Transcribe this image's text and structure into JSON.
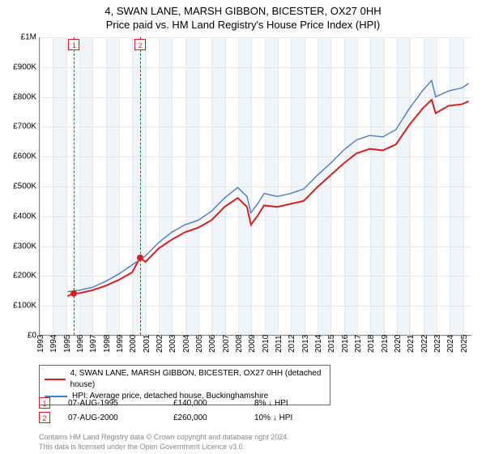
{
  "title": {
    "line1": "4, SWAN LANE, MARSH GIBBON, BICESTER, OX27 0HH",
    "line2": "Price paid vs. HM Land Registry's House Price Index (HPI)"
  },
  "chart": {
    "type": "line",
    "background_color": "#ffffff",
    "grid_color": "#e8e8e8",
    "axis_color": "#888888",
    "alt_band_color": "#f0f5fa",
    "label_fontsize": 10,
    "y": {
      "min": 0,
      "max": 1000000,
      "step": 100000,
      "labels": [
        "£0",
        "£100K",
        "£200K",
        "£300K",
        "£400K",
        "£500K",
        "£600K",
        "£700K",
        "£800K",
        "£900K",
        "£1M"
      ]
    },
    "x": {
      "min": 1993,
      "max": 2025.7,
      "labels": [
        "1993",
        "1994",
        "1995",
        "1996",
        "1997",
        "1998",
        "1999",
        "2000",
        "2001",
        "2002",
        "2003",
        "2004",
        "2005",
        "2006",
        "2007",
        "2008",
        "2009",
        "2010",
        "2011",
        "2012",
        "2013",
        "2014",
        "2015",
        "2016",
        "2017",
        "2018",
        "2019",
        "2020",
        "2021",
        "2022",
        "2023",
        "2024",
        "2025"
      ]
    },
    "markers": [
      {
        "id": "1",
        "x": 1995.6
      },
      {
        "id": "2",
        "x": 2000.6
      }
    ],
    "series": [
      {
        "name": "property",
        "label": "4, SWAN LANE, MARSH GIBBON, BICESTER, OX27 0HH (detached house)",
        "color": "#d42020",
        "width": 2,
        "points": [
          [
            1995.1,
            130000
          ],
          [
            1995.6,
            140000
          ],
          [
            1996,
            140000
          ],
          [
            1997,
            150000
          ],
          [
            1998,
            165000
          ],
          [
            1999,
            185000
          ],
          [
            2000,
            210000
          ],
          [
            2000.6,
            260000
          ],
          [
            2001,
            245000
          ],
          [
            2002,
            290000
          ],
          [
            2003,
            320000
          ],
          [
            2004,
            345000
          ],
          [
            2005,
            360000
          ],
          [
            2006,
            385000
          ],
          [
            2007,
            430000
          ],
          [
            2008,
            460000
          ],
          [
            2008.7,
            430000
          ],
          [
            2009,
            370000
          ],
          [
            2009.5,
            400000
          ],
          [
            2010,
            435000
          ],
          [
            2011,
            430000
          ],
          [
            2012,
            440000
          ],
          [
            2013,
            450000
          ],
          [
            2014,
            495000
          ],
          [
            2015,
            535000
          ],
          [
            2016,
            575000
          ],
          [
            2017,
            610000
          ],
          [
            2018,
            625000
          ],
          [
            2019,
            620000
          ],
          [
            2020,
            640000
          ],
          [
            2021,
            705000
          ],
          [
            2022,
            760000
          ],
          [
            2022.7,
            790000
          ],
          [
            2023,
            745000
          ],
          [
            2024,
            770000
          ],
          [
            2025,
            775000
          ],
          [
            2025.5,
            785000
          ]
        ],
        "data_points": [
          {
            "x": 1995.6,
            "y": 140000
          },
          {
            "x": 2000.6,
            "y": 260000
          }
        ]
      },
      {
        "name": "hpi",
        "label": "HPI: Average price, detached house, Buckinghamshire",
        "color": "#4a7bc8",
        "width": 1.4,
        "points": [
          [
            1995.1,
            145000
          ],
          [
            1996,
            150000
          ],
          [
            1997,
            160000
          ],
          [
            1998,
            180000
          ],
          [
            1999,
            205000
          ],
          [
            2000,
            235000
          ],
          [
            2001,
            265000
          ],
          [
            2002,
            310000
          ],
          [
            2003,
            345000
          ],
          [
            2004,
            370000
          ],
          [
            2005,
            385000
          ],
          [
            2006,
            415000
          ],
          [
            2007,
            460000
          ],
          [
            2008,
            495000
          ],
          [
            2008.7,
            465000
          ],
          [
            2009,
            410000
          ],
          [
            2009.5,
            440000
          ],
          [
            2010,
            475000
          ],
          [
            2011,
            465000
          ],
          [
            2012,
            475000
          ],
          [
            2013,
            490000
          ],
          [
            2014,
            535000
          ],
          [
            2015,
            575000
          ],
          [
            2016,
            620000
          ],
          [
            2017,
            655000
          ],
          [
            2018,
            670000
          ],
          [
            2019,
            665000
          ],
          [
            2020,
            690000
          ],
          [
            2021,
            760000
          ],
          [
            2022,
            820000
          ],
          [
            2022.7,
            855000
          ],
          [
            2023,
            800000
          ],
          [
            2024,
            820000
          ],
          [
            2025,
            830000
          ],
          [
            2025.5,
            845000
          ]
        ]
      }
    ]
  },
  "legend": {
    "items": [
      {
        "color": "#d42020",
        "label": "4, SWAN LANE, MARSH GIBBON, BICESTER, OX27 0HH (detached house)"
      },
      {
        "color": "#4a7bc8",
        "label": "HPI: Average price, detached house, Buckinghamshire"
      }
    ]
  },
  "events": [
    {
      "id": "1",
      "date": "07-AUG-1995",
      "price": "£140,000",
      "change": "8% ↓ HPI"
    },
    {
      "id": "2",
      "date": "07-AUG-2000",
      "price": "£260,000",
      "change": "10% ↓ HPI"
    }
  ],
  "footer": {
    "line1": "Contains HM Land Registry data © Crown copyright and database right 2024.",
    "line2": "This data is licensed under the Open Government Licence v3.0."
  }
}
